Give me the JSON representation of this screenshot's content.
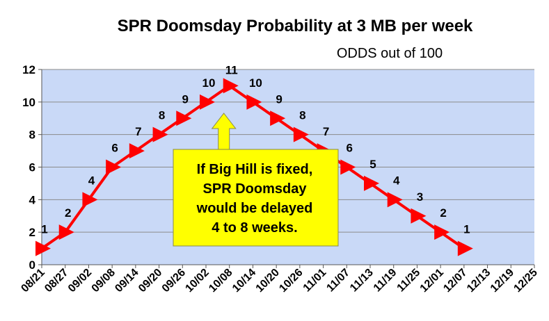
{
  "chart_data": {
    "type": "line",
    "title": "SPR Doomsday Probability at 3 MB per week",
    "subtitle": "ODDS out of 100",
    "xlabel": "",
    "ylabel": "",
    "ylim": [
      0,
      12
    ],
    "yticks": [
      0,
      2,
      4,
      6,
      8,
      10,
      12
    ],
    "grid": "horizontal",
    "legend": "none",
    "categories": [
      "08/21",
      "08/27",
      "09/02",
      "09/08",
      "09/14",
      "09/20",
      "09/26",
      "10/02",
      "10/08",
      "10/14",
      "10/20",
      "10/26",
      "11/01",
      "11/07",
      "11/13",
      "11/19",
      "11/25",
      "12/01",
      "12/07",
      "12/13",
      "12/19",
      "12/25"
    ],
    "points": [
      {
        "x": "08/21",
        "y": 1,
        "label": "1"
      },
      {
        "x": "08/27",
        "y": 2,
        "label": "2"
      },
      {
        "x": "09/02",
        "y": 4,
        "label": "4"
      },
      {
        "x": "09/08",
        "y": 6,
        "label": "6"
      },
      {
        "x": "09/14",
        "y": 7,
        "label": "7"
      },
      {
        "x": "09/20",
        "y": 8,
        "label": "8"
      },
      {
        "x": "09/26",
        "y": 9,
        "label": "9"
      },
      {
        "x": "10/02",
        "y": 10,
        "label": "10"
      },
      {
        "x": "10/08",
        "y": 11,
        "label": "11"
      },
      {
        "x": "10/14",
        "y": 10,
        "label": "10"
      },
      {
        "x": "10/20",
        "y": 9,
        "label": "9"
      },
      {
        "x": "10/26",
        "y": 8,
        "label": "8"
      },
      {
        "x": "11/01",
        "y": 7,
        "label": "7"
      },
      {
        "x": "11/07",
        "y": 6,
        "label": "6"
      },
      {
        "x": "11/13",
        "y": 5,
        "label": "5"
      },
      {
        "x": "11/19",
        "y": 4,
        "label": "4"
      },
      {
        "x": "11/25",
        "y": 3,
        "label": "3"
      },
      {
        "x": "12/01",
        "y": 2,
        "label": "2"
      },
      {
        "x": "12/07",
        "y": 1,
        "label": "1"
      }
    ],
    "annotation": {
      "lines": [
        "If Big Hill is fixed,",
        "SPR Doomsday",
        "would be delayed",
        "4 to 8 weeks."
      ],
      "points_to": "10/08"
    },
    "colors": {
      "line": "#ff0000",
      "plot_bg": "#c9d9f7",
      "grid": "#8a8a8a",
      "annotation_fill": "#ffff00",
      "annotation_border": "#8a8a4a"
    }
  }
}
